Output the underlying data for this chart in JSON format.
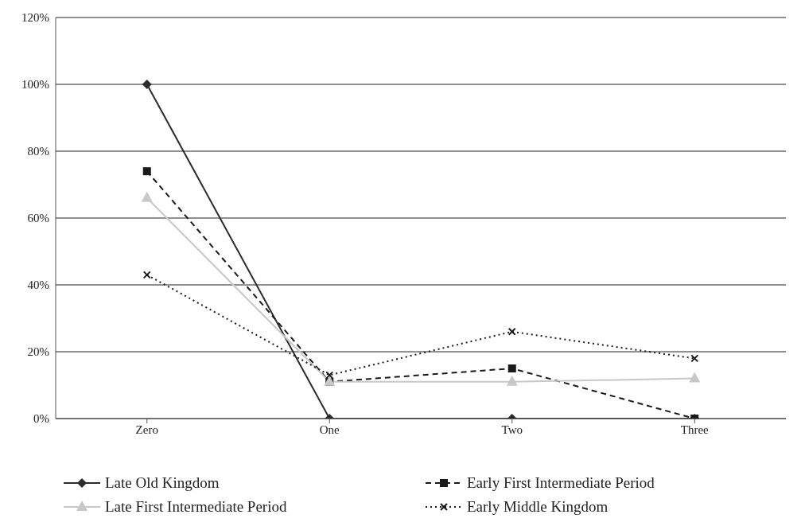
{
  "chart_data": {
    "type": "line",
    "categories": [
      "Zero",
      "One",
      "Two",
      "Three"
    ],
    "series": [
      {
        "name": "Late Old Kingdom",
        "color": "#2b2b2b",
        "values": [
          100,
          0,
          0,
          0
        ],
        "marker": "diamond",
        "line_style": "solid"
      },
      {
        "name": "Early First Intermediate Period",
        "color": "#1a1a1a",
        "values": [
          74,
          11,
          15,
          0
        ],
        "marker": "square",
        "line_style": "dashed"
      },
      {
        "name": "Late First Intermediate Period",
        "color": "#c8c8c8",
        "values": [
          66,
          11,
          11,
          12
        ],
        "marker": "triangle",
        "line_style": "solid"
      },
      {
        "name": "Early Middle Kingdom",
        "color": "#1a1a1a",
        "values": [
          43,
          13,
          26,
          18
        ],
        "marker": "cross",
        "line_style": "dotted"
      }
    ],
    "ylim": [
      0,
      120
    ],
    "yticks": [
      {
        "value": 0,
        "label": "0%"
      },
      {
        "value": 20,
        "label": "20%"
      },
      {
        "value": 40,
        "label": "40%"
      },
      {
        "value": 60,
        "label": "60%"
      },
      {
        "value": 80,
        "label": "80%"
      },
      {
        "value": 100,
        "label": "100%"
      },
      {
        "value": 120,
        "label": "120%"
      }
    ],
    "grid": "y",
    "legend": "bottom"
  }
}
